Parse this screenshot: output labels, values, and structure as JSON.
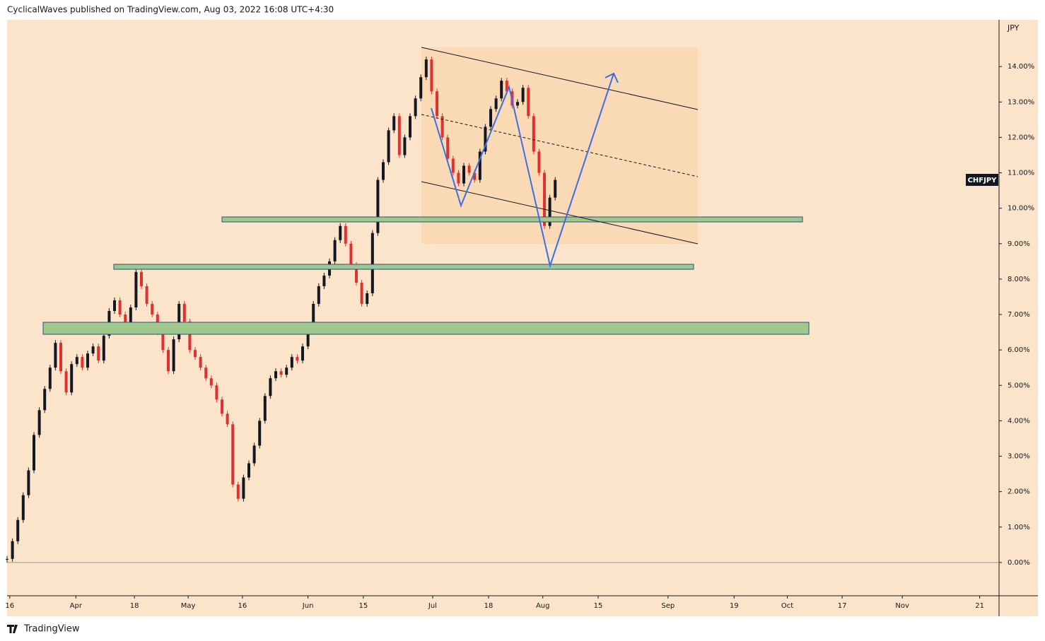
{
  "header": "CyclicalWaves published on TradingView.com, Aug 03, 2022 16:08 UTC+4:30",
  "footer": "TradingView",
  "chart_data": {
    "type": "candlestick",
    "symbol": "CHFJPY",
    "y_axis_label": "JPY",
    "x": [
      0,
      1,
      2,
      3,
      4,
      5,
      6,
      7,
      8,
      9,
      10,
      11,
      12,
      13,
      14,
      15,
      16,
      17,
      18,
      19,
      20,
      21,
      22,
      23,
      24,
      25,
      26,
      27,
      28,
      29,
      30,
      31,
      32,
      33,
      34,
      35,
      36,
      37,
      38,
      39,
      40,
      41,
      42,
      43,
      44,
      45,
      46,
      47,
      48,
      49,
      50,
      51,
      52,
      53,
      54,
      55,
      56,
      57,
      58,
      59,
      60,
      61,
      62,
      63,
      64,
      65,
      66,
      67,
      68,
      69,
      70,
      71,
      72,
      73,
      74,
      75,
      76,
      77,
      78,
      79,
      80,
      81,
      82,
      83,
      84,
      85,
      86,
      87,
      88,
      89,
      90,
      91,
      92,
      93,
      94,
      95,
      96,
      97,
      98,
      99,
      100,
      101,
      102
    ],
    "values": [
      0.1,
      0.6,
      1.2,
      1.9,
      2.6,
      3.6,
      4.3,
      4.9,
      5.5,
      6.2,
      5.4,
      4.8,
      5.6,
      5.8,
      5.5,
      5.9,
      6.1,
      5.7,
      6.4,
      7.1,
      7.4,
      7.0,
      6.6,
      7.2,
      8.2,
      7.8,
      7.3,
      7.0,
      6.5,
      6.0,
      5.4,
      6.3,
      7.3,
      6.8,
      6.0,
      5.8,
      5.5,
      5.2,
      5.0,
      4.6,
      4.2,
      3.9,
      2.2,
      1.8,
      2.4,
      2.8,
      3.3,
      4.0,
      4.7,
      5.2,
      5.4,
      5.3,
      5.5,
      5.8,
      5.7,
      6.1,
      6.6,
      7.3,
      7.8,
      8.1,
      8.5,
      9.1,
      9.5,
      9.0,
      8.4,
      7.9,
      7.3,
      7.6,
      9.3,
      10.8,
      11.3,
      12.2,
      12.6,
      11.5,
      12.0,
      12.6,
      13.1,
      13.7,
      14.2,
      13.3,
      12.6,
      12.0,
      11.4,
      11.0,
      10.7,
      11.2,
      11.0,
      10.8,
      11.6,
      12.3,
      12.8,
      13.1,
      13.6,
      13.3,
      12.9,
      13.0,
      13.4,
      12.6,
      11.6,
      11.0,
      9.5,
      10.3,
      10.8
    ],
    "up_color": "#131722",
    "down_color": "#e0312f",
    "xlim": [
      0,
      184.6
    ],
    "xticks": [
      {
        "value": 0.5,
        "label": "16"
      },
      {
        "value": 12.8,
        "label": "Apr"
      },
      {
        "value": 23.7,
        "label": "18"
      },
      {
        "value": 33.7,
        "label": "May"
      },
      {
        "value": 43.8,
        "label": "16"
      },
      {
        "value": 56,
        "label": "Jun"
      },
      {
        "value": 66.3,
        "label": "15"
      },
      {
        "value": 79.2,
        "label": "Jul"
      },
      {
        "value": 89.6,
        "label": "18"
      },
      {
        "value": 99.7,
        "label": "Aug"
      },
      {
        "value": 110,
        "label": "15"
      },
      {
        "value": 123,
        "label": "Sep"
      },
      {
        "value": 135.3,
        "label": "19"
      },
      {
        "value": 145.2,
        "label": "Oct"
      },
      {
        "value": 155.4,
        "label": "17"
      },
      {
        "value": 166.6,
        "label": "Nov"
      },
      {
        "value": 181,
        "label": "21"
      }
    ],
    "ylim": [
      -0.94,
      15.32
    ],
    "yticks": [
      {
        "value": 0,
        "label": "0.00%"
      },
      {
        "value": 1,
        "label": "1.00%"
      },
      {
        "value": 2,
        "label": "2.00%"
      },
      {
        "value": 3,
        "label": "3.00%"
      },
      {
        "value": 4,
        "label": "4.00%"
      },
      {
        "value": 5,
        "label": "5.00%"
      },
      {
        "value": 6,
        "label": "6.00%"
      },
      {
        "value": 7,
        "label": "7.00%"
      },
      {
        "value": 8,
        "label": "8.00%"
      },
      {
        "value": 9,
        "label": "9.00%"
      },
      {
        "value": 10,
        "label": "10.00%"
      },
      {
        "value": 11,
        "label": "11.00%"
      },
      {
        "value": 12,
        "label": "12.00%"
      },
      {
        "value": 13,
        "label": "13.00%"
      },
      {
        "value": 14,
        "label": "14.00%"
      }
    ]
  }
}
